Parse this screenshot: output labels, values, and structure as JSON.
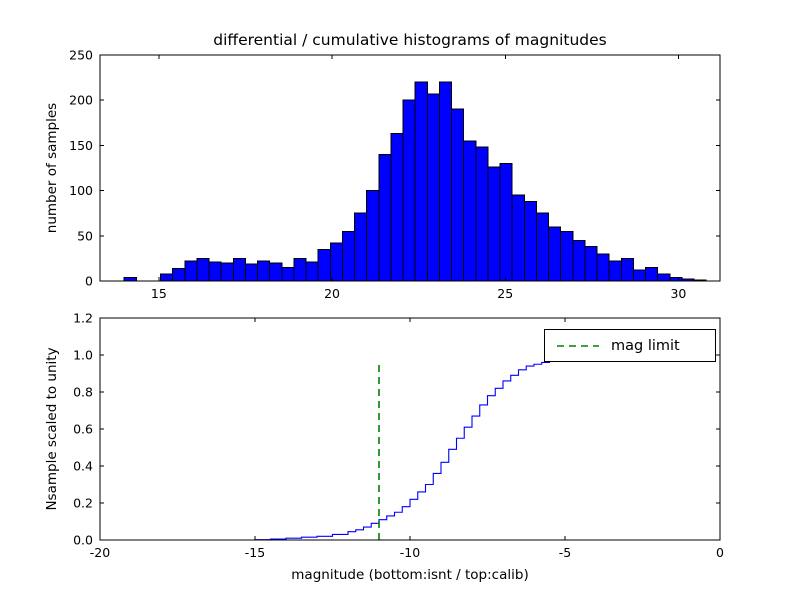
{
  "chart_data": [
    {
      "type": "bar",
      "role": "differential-histogram",
      "title": "differential / cumulative histograms of magnitudes",
      "ylabel": "number of samples",
      "bar_color": "#0000ff",
      "bar_edge_color": "#000000",
      "grid": false,
      "xlim": [
        13.3,
        31.2
      ],
      "ylim": [
        0,
        250
      ],
      "xticks": [
        15,
        20,
        25,
        30
      ],
      "xtick_labels": [
        "15",
        "20",
        "25",
        "30"
      ],
      "yticks": [
        0,
        50,
        100,
        150,
        200,
        250
      ],
      "ytick_labels": [
        "0",
        "50",
        "100",
        "150",
        "200",
        "250"
      ],
      "bin_start": 13.65,
      "bin_width": 0.35,
      "counts": [
        0,
        4,
        0,
        0,
        8,
        14,
        22,
        25,
        21,
        20,
        25,
        19,
        22,
        20,
        15,
        25,
        21,
        35,
        42,
        55,
        75,
        100,
        140,
        163,
        200,
        220,
        207,
        220,
        190,
        155,
        148,
        126,
        130,
        95,
        88,
        75,
        60,
        55,
        45,
        38,
        30,
        22,
        25,
        12,
        15,
        8,
        4,
        2,
        1
      ]
    },
    {
      "type": "line",
      "role": "cumulative-histogram",
      "ylabel": "Nsample scaled to unity",
      "xlabel": "magnitude (bottom:isnt / top:calib)",
      "line_color": "#0000ff",
      "step": "post",
      "grid": false,
      "xlim": [
        -20,
        0
      ],
      "ylim": [
        0,
        1.2
      ],
      "xticks": [
        -20,
        -15,
        -10,
        -5,
        0
      ],
      "xtick_labels": [
        "-20",
        "-15",
        "-10",
        "-5",
        "0"
      ],
      "yticks": [
        0,
        0.2,
        0.4,
        0.6,
        0.8,
        1.0,
        1.2
      ],
      "ytick_labels": [
        "0.0",
        "0.2",
        "0.4",
        "0.6",
        "0.8",
        "1.0",
        "1.2"
      ],
      "x": [
        -15.0,
        -14.5,
        -14.0,
        -13.5,
        -13.0,
        -12.5,
        -12.0,
        -11.75,
        -11.5,
        -11.25,
        -11.0,
        -10.75,
        -10.5,
        -10.25,
        -10.0,
        -9.75,
        -9.5,
        -9.25,
        -9.0,
        -8.75,
        -8.5,
        -8.25,
        -8.0,
        -7.75,
        -7.5,
        -7.25,
        -7.0,
        -6.75,
        -6.5,
        -6.25,
        -6.0,
        -5.75,
        -5.5,
        -5.0,
        -4.0,
        -3.0,
        -2.1,
        -2.0,
        0.0
      ],
      "y": [
        0.002,
        0.005,
        0.01,
        0.015,
        0.02,
        0.03,
        0.045,
        0.055,
        0.07,
        0.09,
        0.11,
        0.13,
        0.15,
        0.18,
        0.22,
        0.26,
        0.3,
        0.36,
        0.42,
        0.49,
        0.55,
        0.61,
        0.67,
        0.73,
        0.78,
        0.82,
        0.86,
        0.89,
        0.92,
        0.94,
        0.95,
        0.96,
        0.965,
        0.97,
        0.97,
        0.97,
        0.97,
        1.0,
        1.0
      ],
      "mag_limit": {
        "x": -11,
        "y0": 0,
        "y1": 0.95,
        "color": "#008000",
        "dash": "7,5",
        "label": "mag limit"
      },
      "legend": {
        "label": "mag limit",
        "position": "upper right"
      }
    }
  ]
}
